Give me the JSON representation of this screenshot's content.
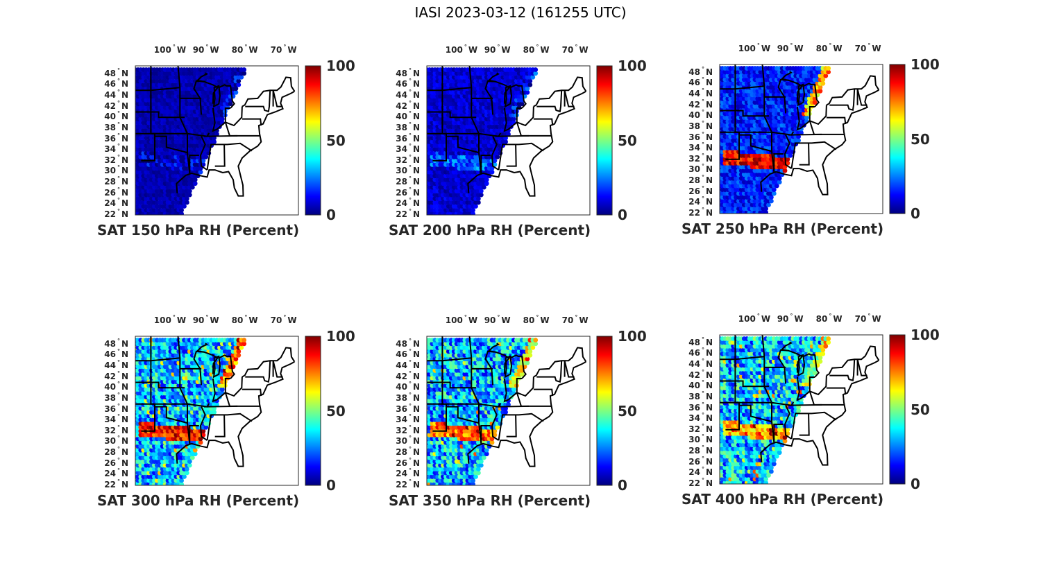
{
  "figure": {
    "title": "IASI 2023-03-12 (161255 UTC)"
  },
  "colormap": {
    "name": "jet",
    "min": 0,
    "max": 100,
    "stops": [
      "#00007f",
      "#0000ff",
      "#007fff",
      "#00ffff",
      "#7fff7f",
      "#ffff00",
      "#ff7f00",
      "#ff0000",
      "#7f0000"
    ]
  },
  "axes": {
    "lon_ticks": [
      {
        "deg": "100",
        "hemi": "W",
        "value": -100
      },
      {
        "deg": "90",
        "hemi": "W",
        "value": -90
      },
      {
        "deg": "80",
        "hemi": "W",
        "value": -80
      },
      {
        "deg": "70",
        "hemi": "W",
        "value": -70
      }
    ],
    "lat_ticks": [
      {
        "deg": "48",
        "hemi": "N",
        "value": 48
      },
      {
        "deg": "46",
        "hemi": "N",
        "value": 46
      },
      {
        "deg": "44",
        "hemi": "N",
        "value": 44
      },
      {
        "deg": "42",
        "hemi": "N",
        "value": 42
      },
      {
        "deg": "40",
        "hemi": "N",
        "value": 40
      },
      {
        "deg": "38",
        "hemi": "N",
        "value": 38
      },
      {
        "deg": "36",
        "hemi": "N",
        "value": 36
      },
      {
        "deg": "34",
        "hemi": "N",
        "value": 34
      },
      {
        "deg": "32",
        "hemi": "N",
        "value": 32
      },
      {
        "deg": "30",
        "hemi": "N",
        "value": 30
      },
      {
        "deg": "28",
        "hemi": "N",
        "value": 28
      },
      {
        "deg": "26",
        "hemi": "N",
        "value": 26
      },
      {
        "deg": "24",
        "hemi": "N",
        "value": 24
      },
      {
        "deg": "22",
        "hemi": "N",
        "value": 22
      }
    ],
    "colorbar_ticks": [
      "100",
      "50",
      "0"
    ]
  },
  "panels": [
    {
      "title": "SAT 150 hPa RH (Percent)",
      "level_hPa": 150,
      "typical_rh": 5,
      "variability": 4,
      "moist_band_rh": 8,
      "ne_edge_rh": 8
    },
    {
      "title": "SAT 200 hPa RH (Percent)",
      "level_hPa": 200,
      "typical_rh": 8,
      "variability": 6,
      "moist_band_rh": 20,
      "ne_edge_rh": 12
    },
    {
      "title": "SAT 250 hPa RH (Percent)",
      "level_hPa": 250,
      "typical_rh": 15,
      "variability": 10,
      "moist_band_rh": 90,
      "ne_edge_rh": 70
    },
    {
      "title": "SAT 300 hPa RH (Percent)",
      "level_hPa": 300,
      "typical_rh": 30,
      "variability": 18,
      "moist_band_rh": 85,
      "ne_edge_rh": 75
    },
    {
      "title": "SAT 350 hPa RH (Percent)",
      "level_hPa": 350,
      "typical_rh": 30,
      "variability": 20,
      "moist_band_rh": 75,
      "ne_edge_rh": 60
    },
    {
      "title": "SAT 400 hPa RH (Percent)",
      "level_hPa": 400,
      "typical_rh": 32,
      "variability": 20,
      "moist_band_rh": 70,
      "ne_edge_rh": 55
    }
  ]
}
